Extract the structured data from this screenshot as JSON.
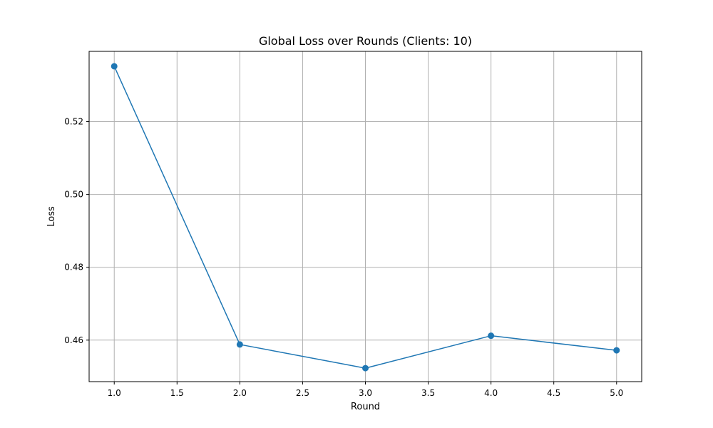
{
  "chart_data": {
    "type": "line",
    "title": "Global Loss over Rounds (Clients: 10)",
    "xlabel": "Round",
    "ylabel": "Loss",
    "x": [
      1.0,
      2.0,
      3.0,
      4.0,
      5.0
    ],
    "series": [
      {
        "values": [
          0.5352,
          0.4588,
          0.4523,
          0.4612,
          0.4572
        ],
        "color": "#1f77b4",
        "marker": "circle"
      }
    ],
    "xlim": [
      0.8,
      5.2
    ],
    "ylim": [
      0.4486,
      0.5393
    ],
    "xticks": [
      1.0,
      1.5,
      2.0,
      2.5,
      3.0,
      3.5,
      4.0,
      4.5,
      5.0
    ],
    "xtick_labels": [
      "1.0",
      "1.5",
      "2.0",
      "2.5",
      "3.0",
      "3.5",
      "4.0",
      "4.5",
      "5.0"
    ],
    "yticks": [
      0.46,
      0.48,
      0.5,
      0.52
    ],
    "ytick_labels": [
      "0.46",
      "0.48",
      "0.50",
      "0.52"
    ],
    "grid": true,
    "grid_color": "#b0b0b0",
    "axis_color": "#000000"
  }
}
